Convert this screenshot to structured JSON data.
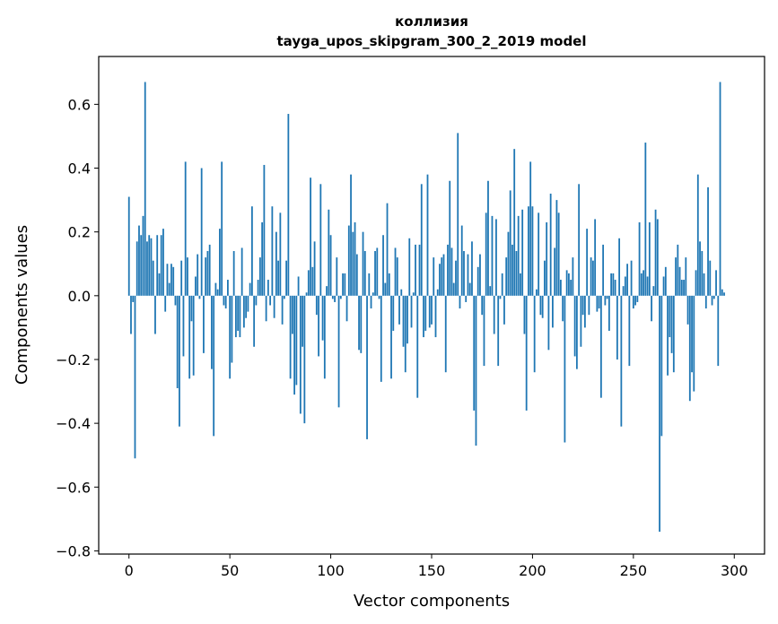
{
  "chart_data": {
    "type": "bar",
    "title": "коллизия",
    "subtitle": "tayga_upos_skipgram_300_2_2019 model",
    "xlabel": "Vector components",
    "ylabel": "Components values",
    "xlim": [
      -15,
      315
    ],
    "ylim": [
      -0.81,
      0.75
    ],
    "xticks": [
      0,
      50,
      100,
      150,
      200,
      250,
      300
    ],
    "xtick_labels": [
      "0",
      "50",
      "100",
      "150",
      "200",
      "250",
      "300"
    ],
    "yticks": [
      -0.8,
      -0.6,
      -0.4,
      -0.2,
      0.0,
      0.2,
      0.4,
      0.6
    ],
    "ytick_labels": [
      "−0.8",
      "−0.6",
      "−0.4",
      "−0.2",
      "0.0",
      "0.2",
      "0.4",
      "0.6"
    ],
    "grid": false,
    "bar_color": "#1f77b4",
    "values": [
      0.31,
      -0.12,
      -0.02,
      -0.51,
      0.17,
      0.22,
      0.19,
      0.25,
      0.67,
      0.17,
      0.19,
      0.18,
      0.11,
      -0.12,
      0.19,
      0.07,
      0.19,
      0.21,
      -0.05,
      0.1,
      0.04,
      0.1,
      0.09,
      -0.03,
      -0.29,
      -0.41,
      0.11,
      -0.19,
      0.42,
      0.12,
      -0.26,
      -0.08,
      -0.25,
      0.06,
      0.13,
      -0.01,
      0.4,
      -0.18,
      0.12,
      0.14,
      0.16,
      -0.23,
      -0.44,
      0.04,
      0.02,
      0.21,
      0.42,
      -0.03,
      -0.04,
      0.05,
      -0.26,
      -0.21,
      0.14,
      -0.13,
      -0.11,
      -0.13,
      0.15,
      -0.1,
      -0.07,
      -0.05,
      0.04,
      0.28,
      -0.16,
      -0.03,
      0.05,
      0.12,
      0.23,
      0.41,
      -0.08,
      0.05,
      -0.03,
      0.28,
      -0.07,
      0.2,
      0.11,
      0.26,
      -0.09,
      -0.01,
      0.11,
      0.57,
      -0.26,
      -0.12,
      -0.31,
      -0.28,
      0.06,
      -0.37,
      -0.16,
      -0.4,
      0.01,
      0.08,
      0.37,
      0.09,
      0.17,
      -0.06,
      -0.19,
      0.35,
      -0.14,
      -0.26,
      0.03,
      0.27,
      0.19,
      -0.01,
      -0.02,
      0.12,
      -0.35,
      -0.01,
      0.07,
      0.07,
      -0.08,
      0.22,
      0.38,
      0.2,
      0.23,
      0.13,
      -0.17,
      -0.18,
      0.2,
      0.14,
      -0.45,
      0.07,
      -0.04,
      0.01,
      0.14,
      0.15,
      -0.01,
      -0.27,
      0.19,
      0.04,
      0.29,
      0.07,
      -0.26,
      -0.11,
      0.15,
      0.12,
      -0.09,
      0.02,
      -0.16,
      -0.24,
      -0.15,
      0.18,
      -0.1,
      0.01,
      0.16,
      -0.32,
      0.16,
      0.35,
      -0.13,
      -0.11,
      0.38,
      -0.1,
      -0.09,
      0.12,
      -0.13,
      0.02,
      0.1,
      0.12,
      0.13,
      -0.24,
      0.16,
      0.36,
      0.15,
      0.04,
      0.11,
      0.51,
      -0.04,
      0.22,
      0.14,
      -0.02,
      0.13,
      0.04,
      0.17,
      -0.36,
      -0.47,
      0.09,
      0.13,
      -0.06,
      -0.22,
      0.26,
      0.36,
      0.03,
      0.25,
      -0.12,
      0.24,
      -0.22,
      -0.01,
      0.07,
      -0.09,
      0.12,
      0.2,
      0.33,
      0.16,
      0.46,
      0.14,
      0.25,
      0.07,
      0.27,
      -0.12,
      -0.36,
      0.28,
      0.42,
      0.28,
      -0.24,
      0.02,
      0.26,
      -0.06,
      -0.07,
      0.11,
      0.23,
      -0.17,
      0.32,
      -0.1,
      0.15,
      0.3,
      0.26,
      0.05,
      -0.08,
      -0.46,
      0.08,
      0.07,
      0.05,
      0.12,
      -0.19,
      -0.23,
      0.35,
      -0.16,
      -0.06,
      -0.1,
      0.21,
      -0.06,
      0.12,
      0.11,
      0.24,
      -0.05,
      -0.04,
      -0.32,
      0.16,
      -0.03,
      -0.01,
      -0.11,
      0.07,
      0.07,
      0.05,
      -0.2,
      0.18,
      -0.41,
      0.03,
      0.06,
      0.1,
      -0.22,
      0.11,
      -0.04,
      -0.03,
      -0.02,
      0.23,
      0.07,
      0.08,
      0.48,
      0.06,
      0.23,
      -0.08,
      0.03,
      0.27,
      0.24,
      -0.74,
      -0.44,
      0.06,
      0.09,
      -0.25,
      -0.13,
      -0.18,
      -0.24,
      0.12,
      0.16,
      0.09,
      0.05,
      0.05,
      0.12,
      -0.09,
      -0.33,
      -0.24,
      -0.3,
      0.08,
      0.38,
      0.17,
      0.14,
      0.07,
      -0.04,
      0.34,
      0.11,
      -0.03,
      -0.01,
      0.08,
      -0.22,
      0.67,
      0.02,
      0.01
    ]
  }
}
